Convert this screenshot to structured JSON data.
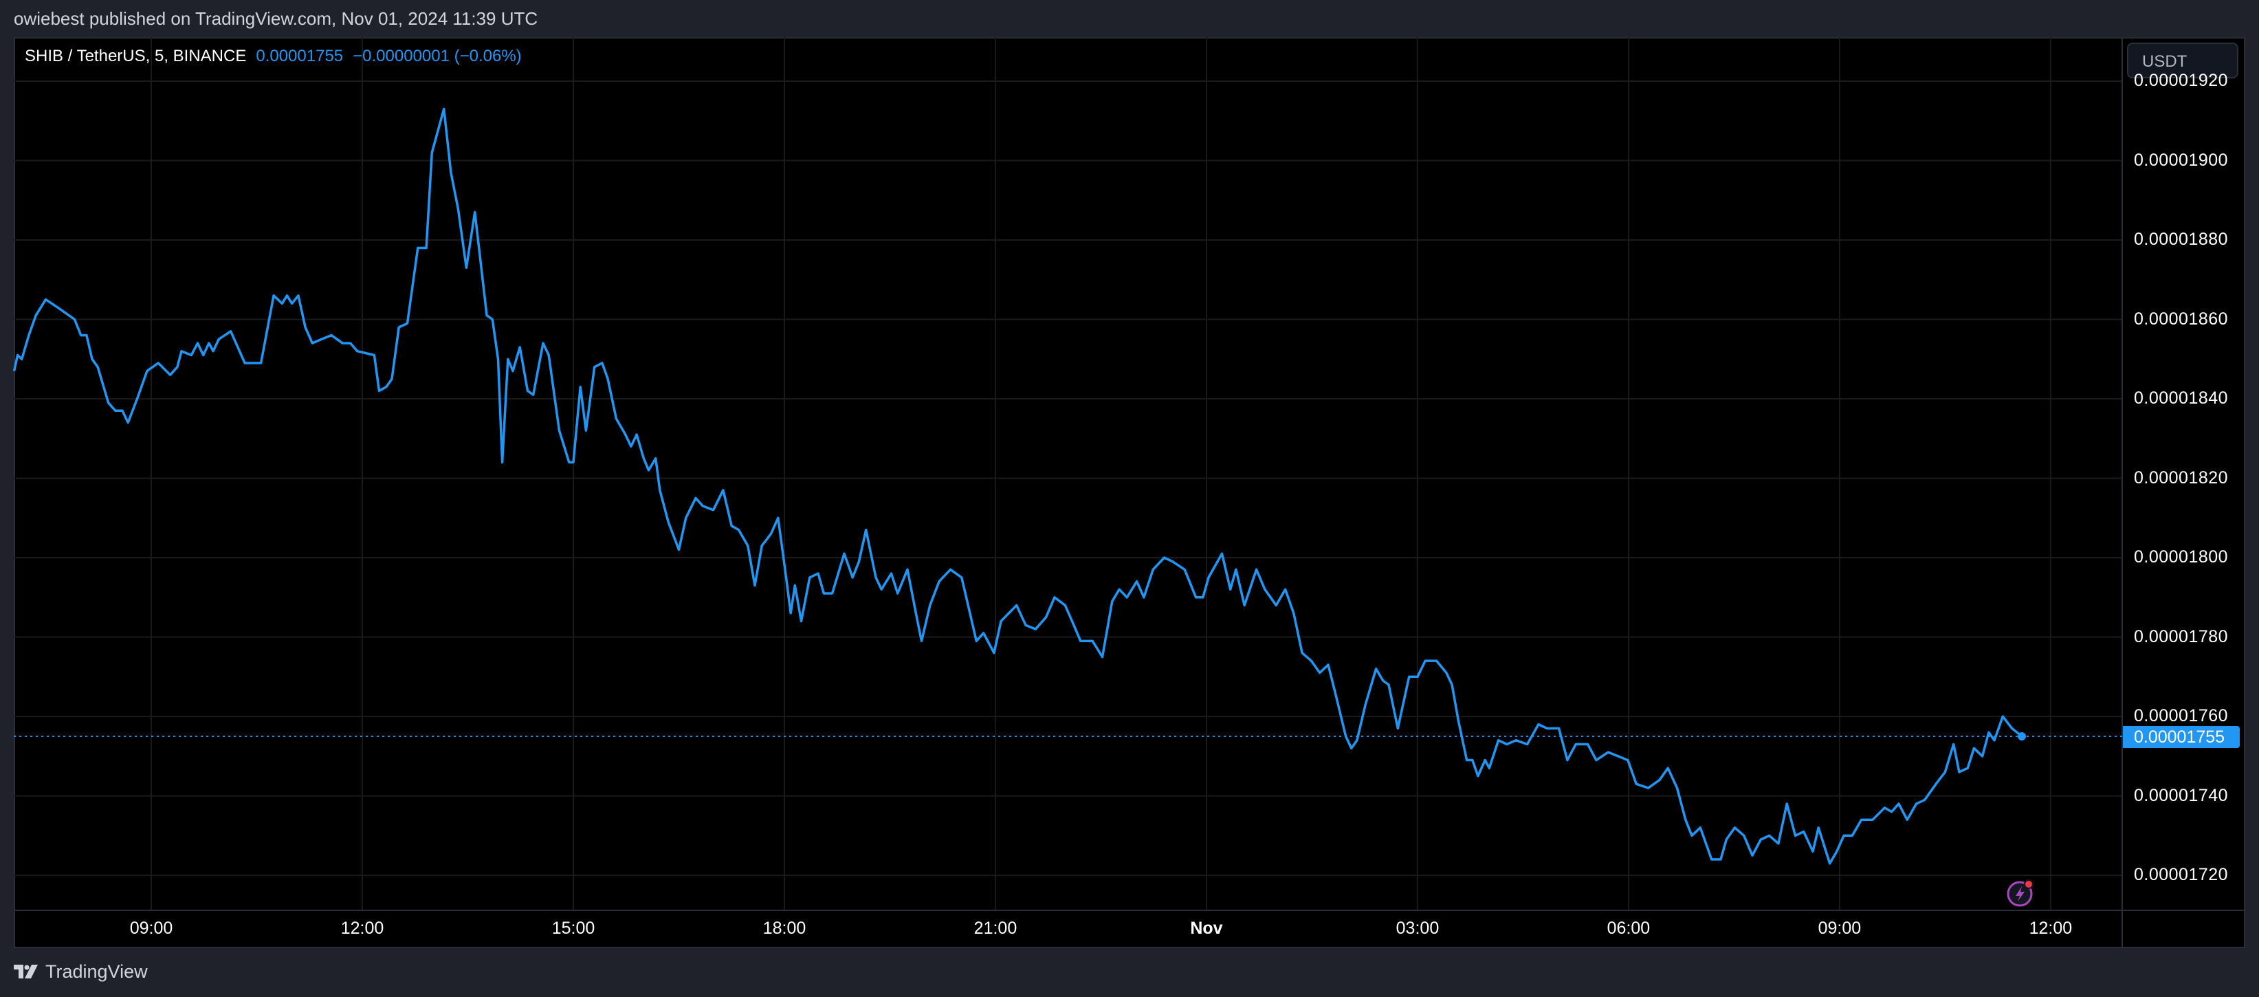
{
  "header": {
    "publish_text": "owiebest published on TradingView.com, Nov 01, 2024 11:39 UTC"
  },
  "legend": {
    "symbol": "SHIB / TetherUS, 5, BINANCE",
    "last_price": "0.00001755",
    "change": "−0.00000001 (−0.06%)"
  },
  "price_axis": {
    "currency_button": "USDT",
    "labels": [
      "0.00001920",
      "0.00001900",
      "0.00001880",
      "0.00001860",
      "0.00001840",
      "0.00001820",
      "0.00001800",
      "0.00001780",
      "0.00001760",
      "0.00001740",
      "0.00001720"
    ],
    "current_price_tag": "0.00001755"
  },
  "time_axis": {
    "labels": [
      "09:00",
      "12:00",
      "15:00",
      "18:00",
      "21:00",
      "Nov",
      "03:00",
      "06:00",
      "09:00",
      "12:00"
    ]
  },
  "footer": {
    "brand": "TradingView"
  },
  "colors": {
    "line": "#2196f3",
    "background": "#000000",
    "frame": "#1f222b",
    "grid": "#1a1a1a",
    "alert_icon": "#ab47bc",
    "alert_dot": "#f23645"
  },
  "chart_data": {
    "type": "line",
    "title": "SHIB / TetherUS, 5, BINANCE",
    "xlabel": "",
    "ylabel": "USDT",
    "x_unit": "hours since Oct 31 09:00 UTC",
    "y_unit": "price × 1e-8 USDT",
    "x_ticks": [
      {
        "label": "09:00",
        "h": 0
      },
      {
        "label": "12:00",
        "h": 3
      },
      {
        "label": "15:00",
        "h": 6
      },
      {
        "label": "18:00",
        "h": 9
      },
      {
        "label": "21:00",
        "h": 12
      },
      {
        "label": "Nov",
        "h": 15
      },
      {
        "label": "03:00",
        "h": 18
      },
      {
        "label": "06:00",
        "h": 21
      },
      {
        "label": "09:00",
        "h": 24
      },
      {
        "label": "12:00",
        "h": 27
      }
    ],
    "y_ticks": [
      1720,
      1740,
      1760,
      1780,
      1800,
      1820,
      1840,
      1860,
      1880,
      1900,
      1920
    ],
    "ylim": [
      1711,
      1932
    ],
    "xlim": [
      -1.95,
      28.8
    ],
    "grid": true,
    "last_value": 1755,
    "points": [
      [
        -1.95,
        1847
      ],
      [
        -1.9,
        1851
      ],
      [
        -1.84,
        1850
      ],
      [
        -1.74,
        1856
      ],
      [
        -1.64,
        1861
      ],
      [
        -1.5,
        1865
      ],
      [
        -1.33,
        1863
      ],
      [
        -1.09,
        1860
      ],
      [
        -1.0,
        1856
      ],
      [
        -0.92,
        1856
      ],
      [
        -0.84,
        1850
      ],
      [
        -0.76,
        1848
      ],
      [
        -0.61,
        1839
      ],
      [
        -0.51,
        1837
      ],
      [
        -0.41,
        1837
      ],
      [
        -0.33,
        1834
      ],
      [
        -0.2,
        1840
      ],
      [
        -0.06,
        1847
      ],
      [
        0.1,
        1849
      ],
      [
        0.27,
        1846
      ],
      [
        0.37,
        1848
      ],
      [
        0.43,
        1852
      ],
      [
        0.57,
        1851
      ],
      [
        0.66,
        1854
      ],
      [
        0.74,
        1851
      ],
      [
        0.82,
        1854
      ],
      [
        0.88,
        1852
      ],
      [
        0.96,
        1855
      ],
      [
        1.13,
        1857
      ],
      [
        1.33,
        1849
      ],
      [
        1.56,
        1849
      ],
      [
        1.74,
        1866
      ],
      [
        1.86,
        1864
      ],
      [
        1.93,
        1866
      ],
      [
        2.0,
        1864
      ],
      [
        2.09,
        1866
      ],
      [
        2.19,
        1858
      ],
      [
        2.29,
        1854
      ],
      [
        2.42,
        1855
      ],
      [
        2.56,
        1856
      ],
      [
        2.72,
        1854
      ],
      [
        2.83,
        1854
      ],
      [
        2.93,
        1852
      ],
      [
        3.17,
        1851
      ],
      [
        3.24,
        1842
      ],
      [
        3.34,
        1843
      ],
      [
        3.42,
        1845
      ],
      [
        3.52,
        1858
      ],
      [
        3.64,
        1859
      ],
      [
        3.79,
        1878
      ],
      [
        3.91,
        1878
      ],
      [
        3.99,
        1902
      ],
      [
        4.16,
        1913
      ],
      [
        4.26,
        1897
      ],
      [
        4.36,
        1888
      ],
      [
        4.48,
        1873
      ],
      [
        4.6,
        1887
      ],
      [
        4.77,
        1861
      ],
      [
        4.85,
        1860
      ],
      [
        4.93,
        1850
      ],
      [
        4.99,
        1824
      ],
      [
        5.07,
        1850
      ],
      [
        5.14,
        1847
      ],
      [
        5.24,
        1853
      ],
      [
        5.35,
        1842
      ],
      [
        5.43,
        1841
      ],
      [
        5.57,
        1854
      ],
      [
        5.65,
        1851
      ],
      [
        5.8,
        1832
      ],
      [
        5.94,
        1824
      ],
      [
        6.0,
        1824
      ],
      [
        6.1,
        1843
      ],
      [
        6.18,
        1832
      ],
      [
        6.3,
        1848
      ],
      [
        6.41,
        1849
      ],
      [
        6.49,
        1845
      ],
      [
        6.61,
        1835
      ],
      [
        6.74,
        1831
      ],
      [
        6.82,
        1828
      ],
      [
        6.9,
        1831
      ],
      [
        7.0,
        1825
      ],
      [
        7.07,
        1822
      ],
      [
        7.17,
        1825
      ],
      [
        7.23,
        1817
      ],
      [
        7.35,
        1809
      ],
      [
        7.5,
        1802
      ],
      [
        7.6,
        1810
      ],
      [
        7.74,
        1815
      ],
      [
        7.84,
        1813
      ],
      [
        7.99,
        1812
      ],
      [
        8.13,
        1817
      ],
      [
        8.25,
        1808
      ],
      [
        8.35,
        1807
      ],
      [
        8.48,
        1803
      ],
      [
        8.58,
        1793
      ],
      [
        8.68,
        1803
      ],
      [
        8.81,
        1806
      ],
      [
        8.91,
        1810
      ],
      [
        9.01,
        1797
      ],
      [
        9.09,
        1786
      ],
      [
        9.15,
        1793
      ],
      [
        9.24,
        1784
      ],
      [
        9.36,
        1795
      ],
      [
        9.48,
        1796
      ],
      [
        9.56,
        1791
      ],
      [
        9.68,
        1791
      ],
      [
        9.85,
        1801
      ],
      [
        9.97,
        1795
      ],
      [
        10.06,
        1799
      ],
      [
        10.16,
        1807
      ],
      [
        10.3,
        1795
      ],
      [
        10.38,
        1792
      ],
      [
        10.52,
        1796
      ],
      [
        10.61,
        1791
      ],
      [
        10.75,
        1797
      ],
      [
        10.87,
        1786
      ],
      [
        10.95,
        1779
      ],
      [
        11.07,
        1788
      ],
      [
        11.2,
        1794
      ],
      [
        11.36,
        1797
      ],
      [
        11.52,
        1795
      ],
      [
        11.73,
        1779
      ],
      [
        11.83,
        1781
      ],
      [
        11.98,
        1776
      ],
      [
        12.08,
        1784
      ],
      [
        12.3,
        1788
      ],
      [
        12.43,
        1783
      ],
      [
        12.57,
        1782
      ],
      [
        12.72,
        1785
      ],
      [
        12.84,
        1790
      ],
      [
        12.99,
        1788
      ],
      [
        13.09,
        1784
      ],
      [
        13.21,
        1779
      ],
      [
        13.38,
        1779
      ],
      [
        13.52,
        1775
      ],
      [
        13.66,
        1789
      ],
      [
        13.76,
        1792
      ],
      [
        13.87,
        1790
      ],
      [
        14.01,
        1794
      ],
      [
        14.11,
        1790
      ],
      [
        14.24,
        1797
      ],
      [
        14.4,
        1800
      ],
      [
        14.52,
        1799
      ],
      [
        14.69,
        1797
      ],
      [
        14.85,
        1790
      ],
      [
        14.95,
        1790
      ],
      [
        15.03,
        1795
      ],
      [
        15.22,
        1801
      ],
      [
        15.34,
        1792
      ],
      [
        15.42,
        1797
      ],
      [
        15.54,
        1788
      ],
      [
        15.71,
        1797
      ],
      [
        15.83,
        1792
      ],
      [
        15.99,
        1788
      ],
      [
        16.12,
        1792
      ],
      [
        16.24,
        1786
      ],
      [
        16.36,
        1776
      ],
      [
        16.49,
        1774
      ],
      [
        16.61,
        1771
      ],
      [
        16.73,
        1773
      ],
      [
        16.83,
        1766
      ],
      [
        16.98,
        1755
      ],
      [
        17.06,
        1752
      ],
      [
        17.14,
        1754
      ],
      [
        17.26,
        1763
      ],
      [
        17.41,
        1772
      ],
      [
        17.51,
        1769
      ],
      [
        17.59,
        1768
      ],
      [
        17.72,
        1757
      ],
      [
        17.88,
        1770
      ],
      [
        18.0,
        1770
      ],
      [
        18.11,
        1774
      ],
      [
        18.27,
        1774
      ],
      [
        18.41,
        1771
      ],
      [
        18.49,
        1768
      ],
      [
        18.58,
        1759
      ],
      [
        18.7,
        1749
      ],
      [
        18.78,
        1749
      ],
      [
        18.86,
        1745
      ],
      [
        18.96,
        1749
      ],
      [
        19.02,
        1747
      ],
      [
        19.15,
        1754
      ],
      [
        19.27,
        1753
      ],
      [
        19.4,
        1754
      ],
      [
        19.56,
        1753
      ],
      [
        19.72,
        1758
      ],
      [
        19.84,
        1757
      ],
      [
        20.01,
        1757
      ],
      [
        20.13,
        1749
      ],
      [
        20.25,
        1753
      ],
      [
        20.42,
        1753
      ],
      [
        20.54,
        1749
      ],
      [
        20.71,
        1751
      ],
      [
        20.99,
        1749
      ],
      [
        21.11,
        1743
      ],
      [
        21.28,
        1742
      ],
      [
        21.44,
        1744
      ],
      [
        21.56,
        1747
      ],
      [
        21.69,
        1742
      ],
      [
        21.81,
        1734
      ],
      [
        21.9,
        1730
      ],
      [
        22.02,
        1732
      ],
      [
        22.18,
        1724
      ],
      [
        22.31,
        1724
      ],
      [
        22.39,
        1729
      ],
      [
        22.51,
        1732
      ],
      [
        22.64,
        1730
      ],
      [
        22.76,
        1725
      ],
      [
        22.88,
        1729
      ],
      [
        23.0,
        1730
      ],
      [
        23.13,
        1728
      ],
      [
        23.25,
        1738
      ],
      [
        23.37,
        1730
      ],
      [
        23.49,
        1731
      ],
      [
        23.62,
        1726
      ],
      [
        23.7,
        1732
      ],
      [
        23.86,
        1723
      ],
      [
        23.96,
        1726
      ],
      [
        24.06,
        1730
      ],
      [
        24.18,
        1730
      ],
      [
        24.31,
        1734
      ],
      [
        24.47,
        1734
      ],
      [
        24.64,
        1737
      ],
      [
        24.74,
        1736
      ],
      [
        24.84,
        1738
      ],
      [
        24.96,
        1734
      ],
      [
        25.09,
        1738
      ],
      [
        25.21,
        1739
      ],
      [
        25.37,
        1743
      ],
      [
        25.5,
        1746
      ],
      [
        25.62,
        1753
      ],
      [
        25.7,
        1746
      ],
      [
        25.82,
        1747
      ],
      [
        25.91,
        1752
      ],
      [
        26.03,
        1750
      ],
      [
        26.12,
        1756
      ],
      [
        26.2,
        1754
      ],
      [
        26.32,
        1760
      ],
      [
        26.45,
        1757
      ],
      [
        26.59,
        1755
      ]
    ]
  }
}
